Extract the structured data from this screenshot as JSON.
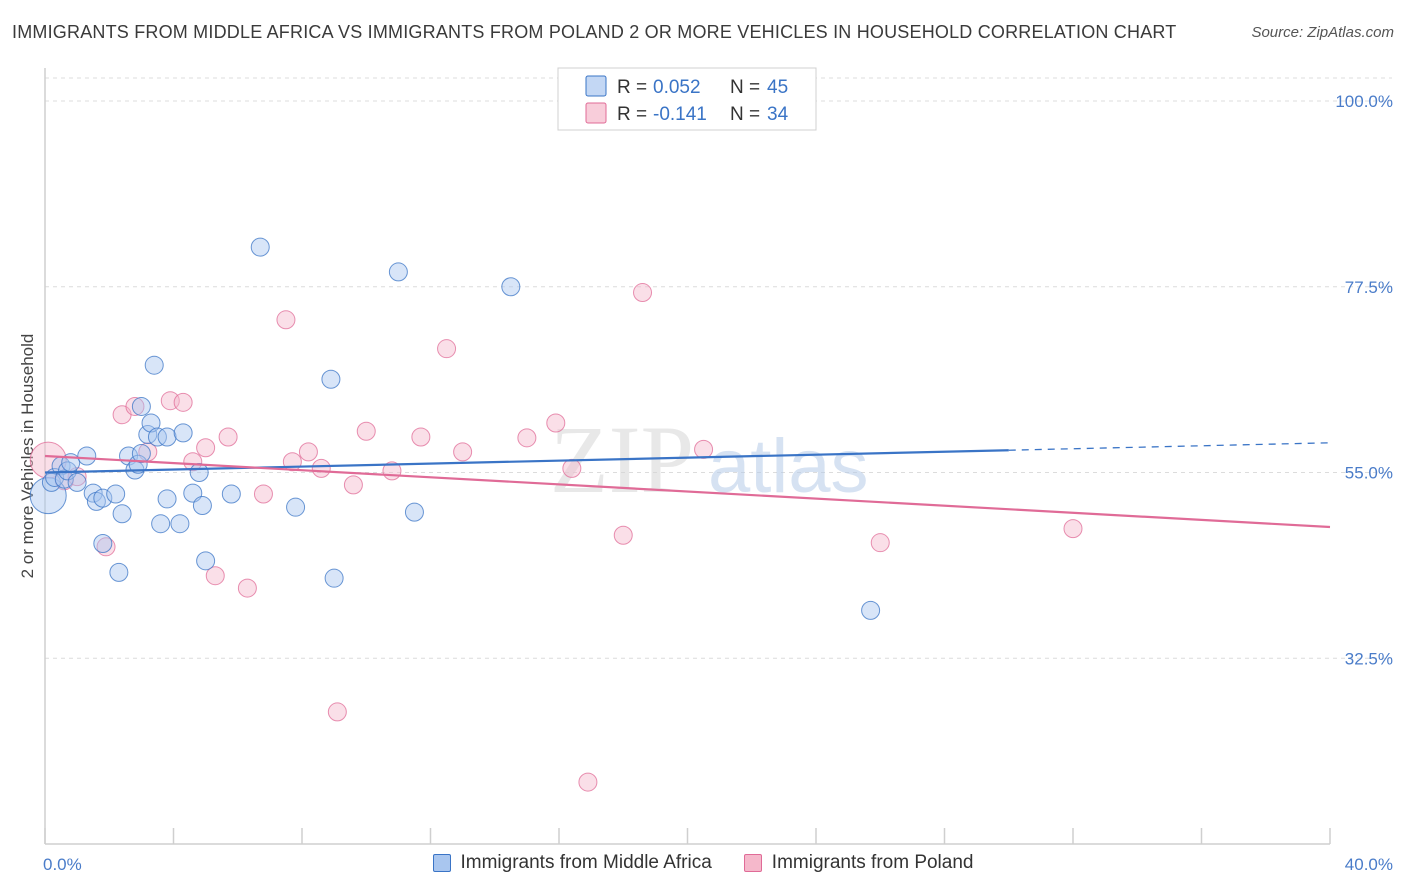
{
  "title": "IMMIGRANTS FROM MIDDLE AFRICA VS IMMIGRANTS FROM POLAND 2 OR MORE VEHICLES IN HOUSEHOLD CORRELATION CHART",
  "source": "Source: ZipAtlas.com",
  "watermark": {
    "zip": "ZIP",
    "atlas": "atlas"
  },
  "colors": {
    "blue": "#3a74c6",
    "blue_fill": "#a9c6ef",
    "pink": "#e06b97",
    "pink_fill": "#f5b8cb",
    "grid": "#d9d9d9",
    "tick_text": "#4a7cc9"
  },
  "legend": {
    "r_label": "R =",
    "n_label": "N =",
    "rows": [
      {
        "r": "0.052",
        "n": "45"
      },
      {
        "r": "-0.141",
        "n": "34"
      }
    ]
  },
  "chart_data": {
    "type": "scatter",
    "title": "IMMIGRANTS FROM MIDDLE AFRICA VS IMMIGRANTS FROM POLAND 2 OR MORE VEHICLES IN HOUSEHOLD CORRELATION CHART",
    "xlabel": "",
    "ylabel": "2 or more Vehicles in Household",
    "xlim": [
      0,
      40
    ],
    "ylim": [
      10,
      104
    ],
    "x_tick_labels": [
      {
        "value": 0,
        "label": "0.0%"
      },
      {
        "value": 40,
        "label": "40.0%"
      }
    ],
    "y_tick_labels": [
      {
        "value": 100,
        "label": "100.0%"
      },
      {
        "value": 77.5,
        "label": "77.5%"
      },
      {
        "value": 55,
        "label": "55.0%"
      },
      {
        "value": 32.5,
        "label": "32.5%"
      }
    ],
    "y_gridlines": [
      100,
      77.5,
      55,
      32.5
    ],
    "grid": true,
    "legend_position": "top-center",
    "series": [
      {
        "name": "Immigrants from Middle Africa",
        "color": "#3a74c6",
        "trend": {
          "x": [
            0,
            30
          ],
          "y": [
            55,
            57.7
          ],
          "dashed_to": [
            40,
            58.6
          ]
        },
        "points": [
          {
            "x": 0.1,
            "y": 52.2,
            "s": 2
          },
          {
            "x": 0.2,
            "y": 53.8
          },
          {
            "x": 0.3,
            "y": 54.4
          },
          {
            "x": 0.5,
            "y": 55.8
          },
          {
            "x": 0.6,
            "y": 54.2
          },
          {
            "x": 0.7,
            "y": 55.2
          },
          {
            "x": 0.8,
            "y": 56.2
          },
          {
            "x": 1.0,
            "y": 53.8
          },
          {
            "x": 1.3,
            "y": 57.0
          },
          {
            "x": 1.5,
            "y": 52.5
          },
          {
            "x": 1.6,
            "y": 51.5
          },
          {
            "x": 1.8,
            "y": 51.9
          },
          {
            "x": 1.8,
            "y": 46.4
          },
          {
            "x": 2.2,
            "y": 52.4
          },
          {
            "x": 2.3,
            "y": 42.9
          },
          {
            "x": 2.4,
            "y": 50.0
          },
          {
            "x": 2.6,
            "y": 57.0
          },
          {
            "x": 2.8,
            "y": 55.3
          },
          {
            "x": 2.9,
            "y": 56.0
          },
          {
            "x": 3.0,
            "y": 63.0
          },
          {
            "x": 3.0,
            "y": 57.3
          },
          {
            "x": 3.2,
            "y": 59.6
          },
          {
            "x": 3.3,
            "y": 61.0
          },
          {
            "x": 3.4,
            "y": 68.0
          },
          {
            "x": 3.5,
            "y": 59.3
          },
          {
            "x": 3.6,
            "y": 48.8
          },
          {
            "x": 3.8,
            "y": 51.8
          },
          {
            "x": 3.8,
            "y": 59.3
          },
          {
            "x": 4.2,
            "y": 48.8
          },
          {
            "x": 4.3,
            "y": 59.8
          },
          {
            "x": 4.6,
            "y": 52.5
          },
          {
            "x": 4.8,
            "y": 55.0
          },
          {
            "x": 4.9,
            "y": 51.0
          },
          {
            "x": 5.0,
            "y": 44.3
          },
          {
            "x": 5.8,
            "y": 52.4
          },
          {
            "x": 6.7,
            "y": 82.3
          },
          {
            "x": 7.8,
            "y": 50.8
          },
          {
            "x": 8.9,
            "y": 66.3
          },
          {
            "x": 9.0,
            "y": 42.2
          },
          {
            "x": 11.0,
            "y": 79.3
          },
          {
            "x": 11.5,
            "y": 50.2
          },
          {
            "x": 14.5,
            "y": 77.5
          },
          {
            "x": 25.7,
            "y": 38.3
          }
        ]
      },
      {
        "name": "Immigrants from Poland",
        "color": "#e06b97",
        "trend": {
          "x": [
            0,
            40
          ],
          "y": [
            57.0,
            48.4
          ]
        },
        "points": [
          {
            "x": 0.1,
            "y": 56.5,
            "s": 2
          },
          {
            "x": 0.6,
            "y": 54.0
          },
          {
            "x": 1.0,
            "y": 54.5
          },
          {
            "x": 1.9,
            "y": 46.0
          },
          {
            "x": 2.4,
            "y": 62.0
          },
          {
            "x": 2.8,
            "y": 63.0
          },
          {
            "x": 3.2,
            "y": 57.5
          },
          {
            "x": 3.9,
            "y": 63.7
          },
          {
            "x": 4.3,
            "y": 63.5
          },
          {
            "x": 4.6,
            "y": 56.3
          },
          {
            "x": 5.0,
            "y": 58.0
          },
          {
            "x": 5.3,
            "y": 42.5
          },
          {
            "x": 5.7,
            "y": 59.3
          },
          {
            "x": 6.3,
            "y": 41.0
          },
          {
            "x": 6.8,
            "y": 52.4
          },
          {
            "x": 7.5,
            "y": 73.5
          },
          {
            "x": 7.7,
            "y": 56.3
          },
          {
            "x": 8.2,
            "y": 57.5
          },
          {
            "x": 8.6,
            "y": 55.5
          },
          {
            "x": 9.1,
            "y": 26.0
          },
          {
            "x": 9.6,
            "y": 53.5
          },
          {
            "x": 10.0,
            "y": 60.0
          },
          {
            "x": 10.8,
            "y": 55.2
          },
          {
            "x": 11.7,
            "y": 59.3
          },
          {
            "x": 12.5,
            "y": 70.0
          },
          {
            "x": 13.0,
            "y": 57.5
          },
          {
            "x": 15.0,
            "y": 59.2
          },
          {
            "x": 15.9,
            "y": 61.0
          },
          {
            "x": 16.4,
            "y": 55.5
          },
          {
            "x": 16.9,
            "y": 17.5
          },
          {
            "x": 18.0,
            "y": 47.4
          },
          {
            "x": 18.6,
            "y": 76.8
          },
          {
            "x": 20.5,
            "y": 57.8
          },
          {
            "x": 26.0,
            "y": 46.5
          },
          {
            "x": 32.0,
            "y": 48.2
          }
        ]
      }
    ]
  }
}
